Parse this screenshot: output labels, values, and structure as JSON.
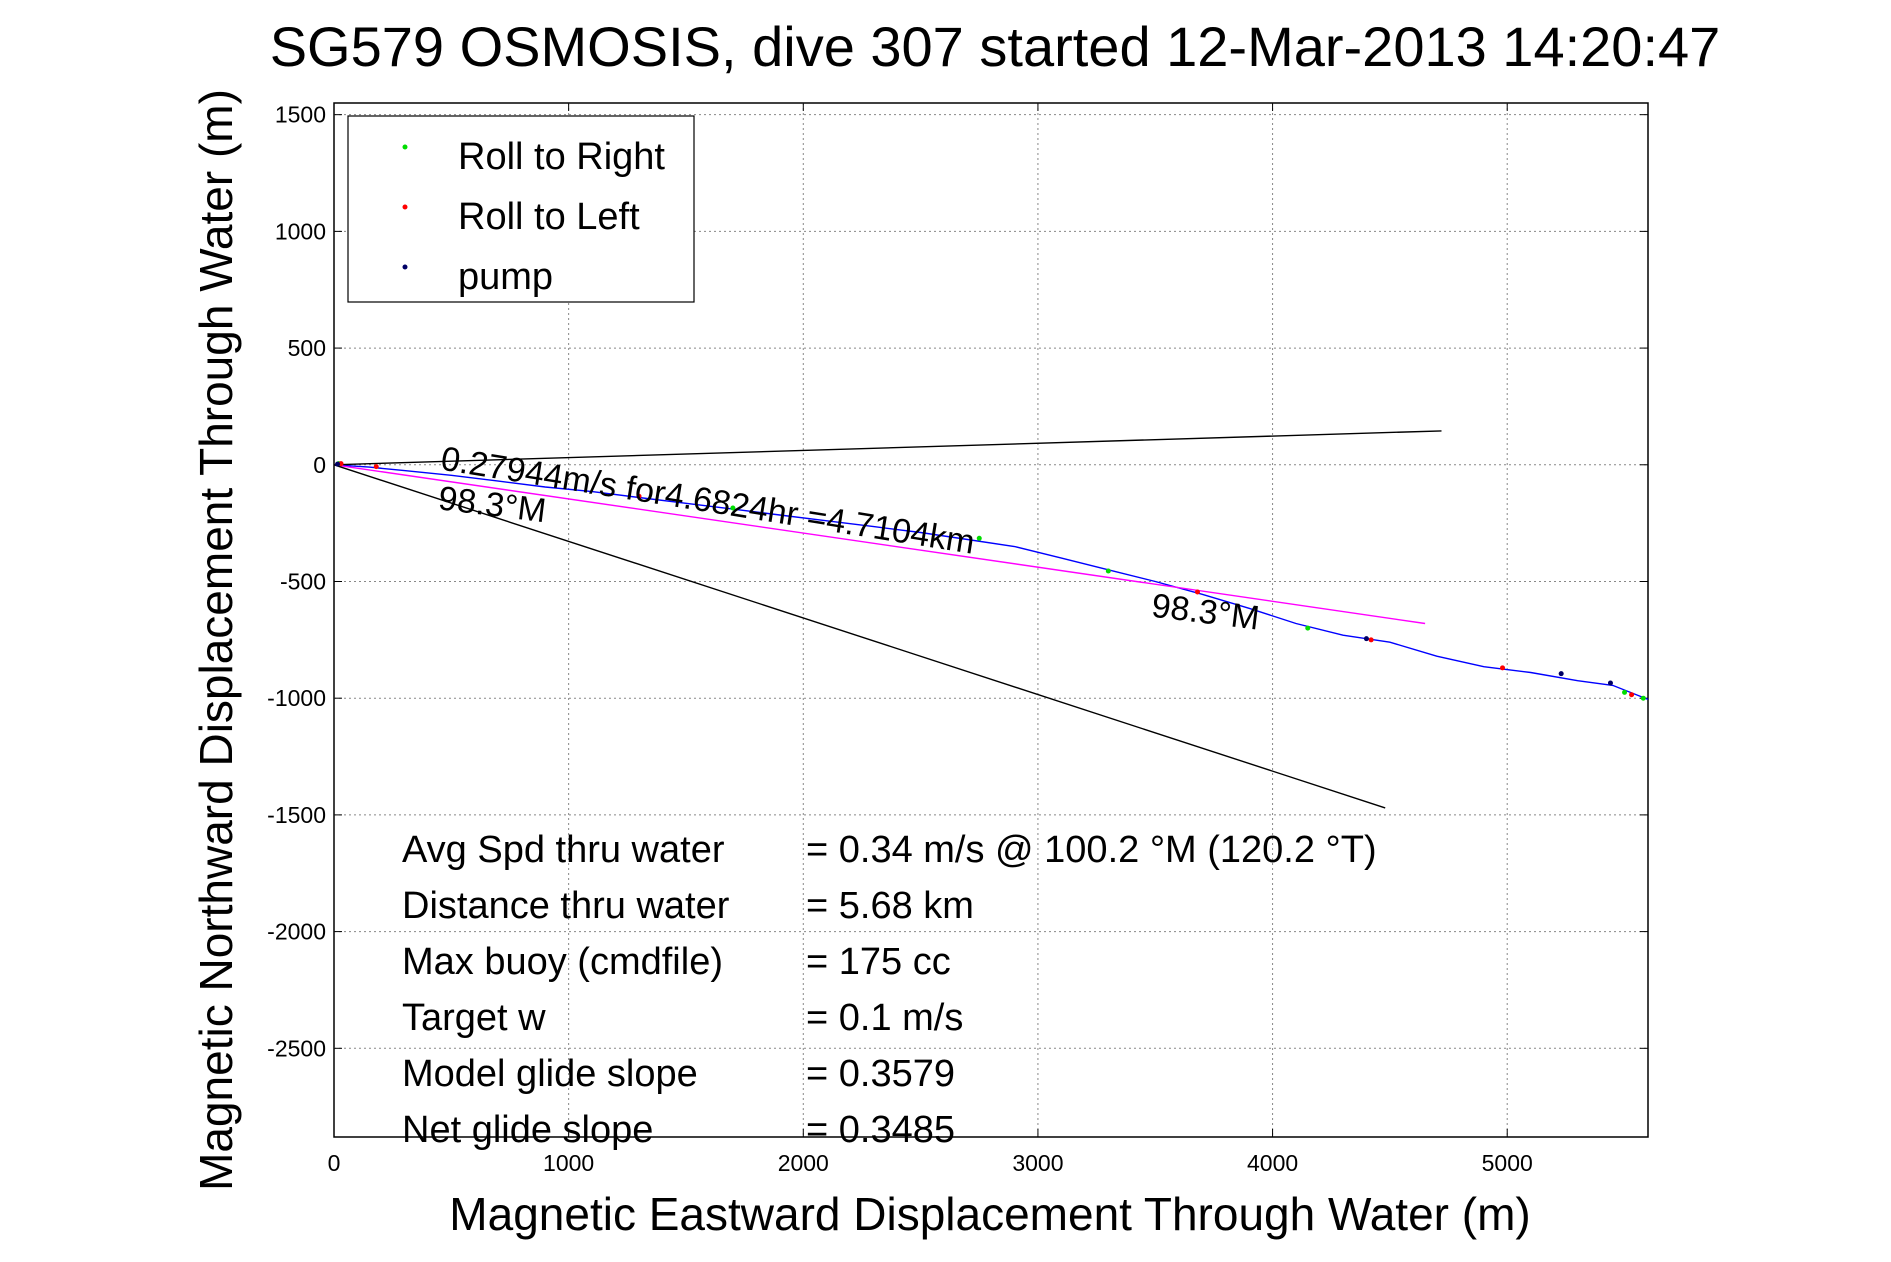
{
  "chart_data": {
    "type": "line",
    "title": "SG579 OSMOSIS, dive 307 started 12-Mar-2013 14:20:47",
    "xlabel": "Magnetic Eastward Displacement Through Water (m)",
    "ylabel": "Magnetic Northward Displacement Through Water (m)",
    "xlim": [
      0,
      5600
    ],
    "ylim": [
      -2880,
      1550
    ],
    "xticks": [
      0,
      1000,
      2000,
      3000,
      4000,
      5000
    ],
    "yticks": [
      1500,
      1000,
      500,
      0,
      -500,
      -1000,
      -1500,
      -2000,
      -2500
    ],
    "grid": true,
    "legend_position": "top-left",
    "legend": [
      {
        "label": "Roll to Right",
        "color": "#00dd00"
      },
      {
        "label": "Roll to Left",
        "color": "#ff0000"
      },
      {
        "label": "pump",
        "color": "#000066"
      }
    ],
    "series": [
      {
        "color": "#0000ff",
        "x": [
          0,
          150,
          300,
          500,
          700,
          900,
          1100,
          1300,
          1500,
          1700,
          1900,
          2100,
          2300,
          2500,
          2700,
          2900,
          3100,
          3300,
          3500,
          3700,
          3900,
          4100,
          4300,
          4500,
          4700,
          4900,
          5100,
          5300,
          5450,
          5600
        ],
        "y": [
          0,
          -10,
          -25,
          -45,
          -70,
          -95,
          -115,
          -140,
          -165,
          -190,
          -215,
          -240,
          -265,
          -290,
          -320,
          -350,
          -400,
          -450,
          -500,
          -555,
          -615,
          -680,
          -730,
          -760,
          -820,
          -865,
          -890,
          -925,
          -945,
          -1005
        ]
      },
      {
        "color": "#ff00ff",
        "x": [
          0,
          4650
        ],
        "y": [
          0,
          -680
        ]
      },
      {
        "color": "#000000",
        "x": [
          0,
          4720
        ],
        "y": [
          0,
          145
        ]
      },
      {
        "color": "#000000",
        "x": [
          0,
          4480
        ],
        "y": [
          0,
          -1470
        ]
      }
    ],
    "markers": {
      "roll_right": {
        "color": "#00dd00",
        "x": [
          20,
          1700,
          2750,
          3300,
          4150,
          5500,
          5580
        ],
        "y": [
          5,
          -185,
          -315,
          -455,
          -700,
          -975,
          -1000
        ]
      },
      "roll_left": {
        "color": "#ff0000",
        "x": [
          30,
          180,
          1300,
          3680,
          4420,
          4980,
          5530
        ],
        "y": [
          5,
          -8,
          -135,
          -545,
          -750,
          -870,
          -985
        ]
      },
      "pump": {
        "color": "#000066",
        "x": [
          15,
          4400,
          5230,
          5440
        ],
        "y": [
          3,
          -745,
          -895,
          -935
        ]
      }
    },
    "annotations": [
      {
        "text": "0.27944m/s for4.6824hr =4.7104km",
        "x": 450,
        "y": -20,
        "rotation": 9
      },
      {
        "text": "98.3°M",
        "x": 440,
        "y": -190,
        "rotation": 7
      },
      {
        "text": "98.3°M",
        "x": 3480,
        "y": -650,
        "rotation": 7
      }
    ],
    "stats": [
      {
        "label": "Avg Spd thru water",
        "value": "=  0.34 m/s @ 100.2 °M (120.2 °T)"
      },
      {
        "label": "Distance thru water",
        "value": "=  5.68 km"
      },
      {
        "label": "Max buoy (cmdfile)",
        "value": "= 175 cc"
      },
      {
        "label": "Target w",
        "value": "= 0.1 m/s"
      },
      {
        "label": "Model glide slope",
        "value": "= 0.3579"
      },
      {
        "label": "Net glide slope",
        "value": "= 0.3485"
      }
    ]
  }
}
